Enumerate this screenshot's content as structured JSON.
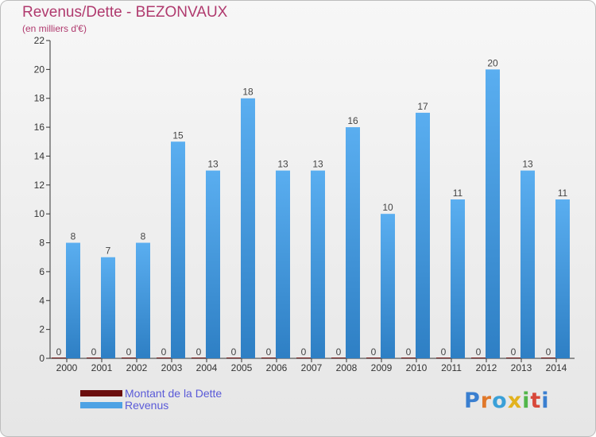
{
  "title": "Revenus/Dette - BEZONVAUX",
  "subtitle": "(en milliers d'€)",
  "brand": "Proxiti",
  "colors": {
    "debt": "#6b0e0e",
    "revenue": "#4ea2e4",
    "title": "#b03a6e",
    "legend_text": "#5a5ad8"
  },
  "chart_data": {
    "type": "bar",
    "categories": [
      "2000",
      "2001",
      "2002",
      "2003",
      "2004",
      "2005",
      "2006",
      "2007",
      "2008",
      "2009",
      "2010",
      "2011",
      "2012",
      "2013",
      "2014"
    ],
    "series": [
      {
        "name": "Montant de la Dette",
        "values": [
          0,
          0,
          0,
          0,
          0,
          0,
          0,
          0,
          0,
          0,
          0,
          0,
          0,
          0,
          0
        ]
      },
      {
        "name": "Revenus",
        "values": [
          8,
          7,
          8,
          15,
          13,
          18,
          13,
          13,
          16,
          10,
          17,
          11,
          20,
          13,
          11
        ]
      }
    ],
    "ylim": [
      0,
      22
    ],
    "yticks": [
      0,
      2,
      4,
      6,
      8,
      10,
      12,
      14,
      16,
      18,
      20,
      22
    ],
    "grid": false,
    "legend_position": "bottom-left"
  }
}
